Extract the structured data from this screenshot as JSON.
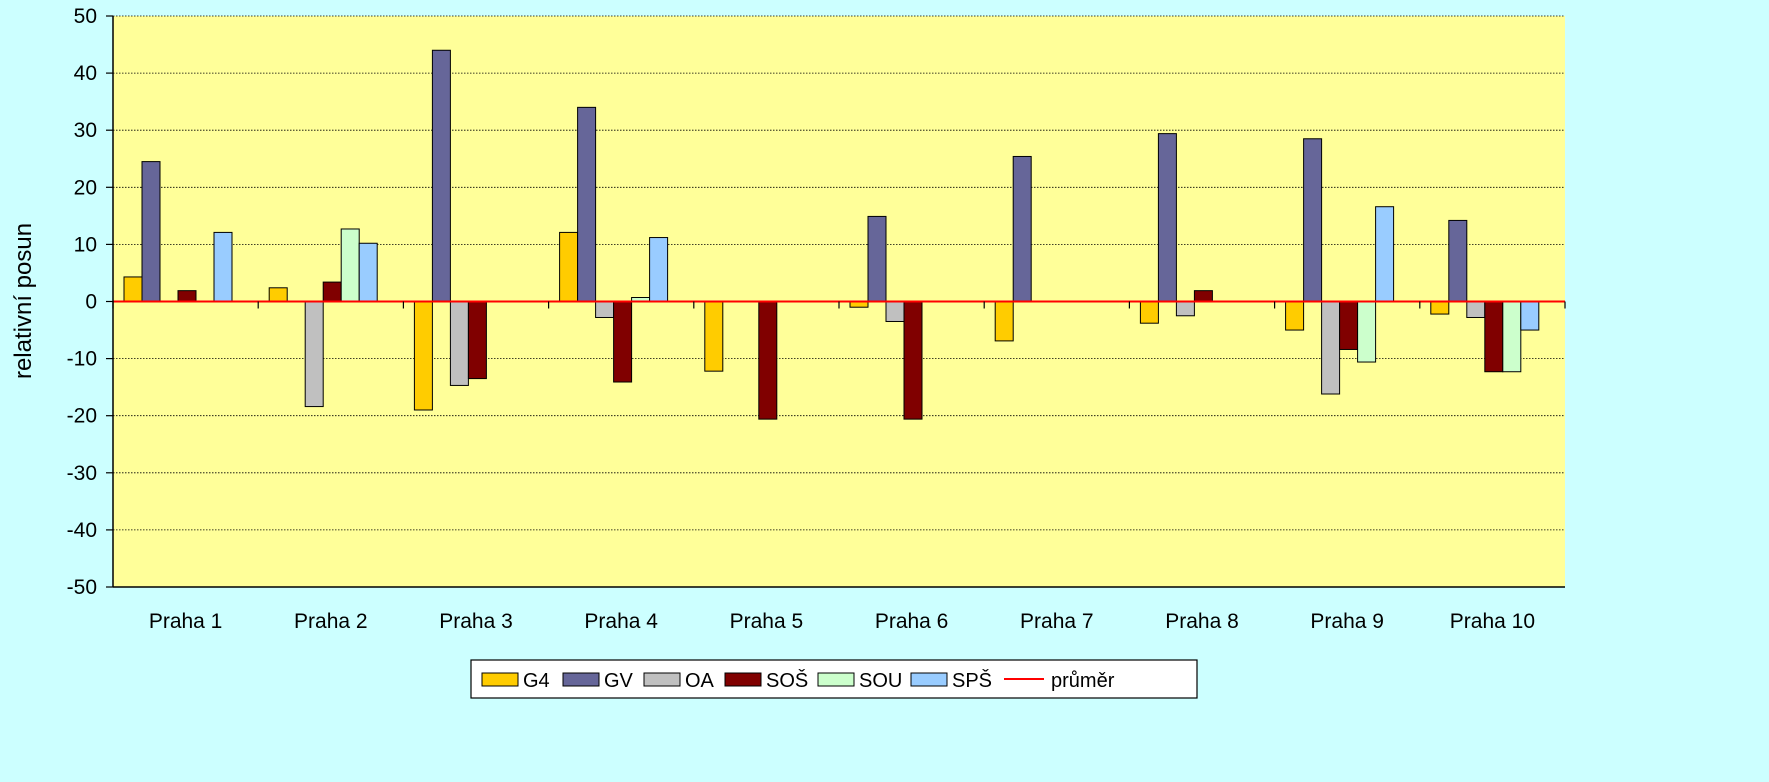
{
  "colors": {
    "background": "#ccffff",
    "plot_area": "#ffff99",
    "average_line": "#ff0000"
  },
  "chart_data": {
    "type": "bar",
    "title": "",
    "xlabel": "",
    "ylabel": "relativní posun",
    "ylim": [
      -50,
      50
    ],
    "yticks": [
      -50,
      -40,
      -30,
      -20,
      -10,
      0,
      10,
      20,
      30,
      40,
      50
    ],
    "grid": true,
    "legend_position": "bottom",
    "categories": [
      "Praha 1",
      "Praha 2",
      "Praha 3",
      "Praha 4",
      "Praha 5",
      "Praha 6",
      "Praha 7",
      "Praha 8",
      "Praha 9",
      "Praha 10"
    ],
    "series": [
      {
        "name": "G4",
        "color": "#ffcc00",
        "values": [
          4.3,
          2.4,
          -19.0,
          12.1,
          -12.2,
          -1.0,
          -6.9,
          -3.8,
          -5.0,
          -2.2
        ]
      },
      {
        "name": "GV",
        "color": "#666699",
        "values": [
          24.5,
          null,
          44.0,
          34.0,
          null,
          14.9,
          25.4,
          29.4,
          28.5,
          14.2
        ]
      },
      {
        "name": "OA",
        "color": "#c0c0c0",
        "values": [
          null,
          -18.4,
          -14.7,
          -2.8,
          null,
          -3.5,
          null,
          -2.5,
          -16.2,
          -2.8
        ]
      },
      {
        "name": "SOŠ",
        "color": "#800000",
        "values": [
          1.9,
          3.4,
          -13.5,
          -14.1,
          -20.6,
          -20.6,
          null,
          1.9,
          -8.4,
          -12.3
        ]
      },
      {
        "name": "SOU",
        "color": "#ccffcc",
        "values": [
          null,
          12.7,
          null,
          0.7,
          null,
          null,
          null,
          null,
          -10.6,
          -12.3
        ]
      },
      {
        "name": "SPŠ",
        "color": "#99ccff",
        "values": [
          12.1,
          10.2,
          null,
          11.2,
          null,
          null,
          null,
          null,
          16.6,
          -5.0
        ]
      }
    ],
    "reference_line": {
      "name": "průměr",
      "value": 0,
      "color": "#ff0000"
    }
  }
}
